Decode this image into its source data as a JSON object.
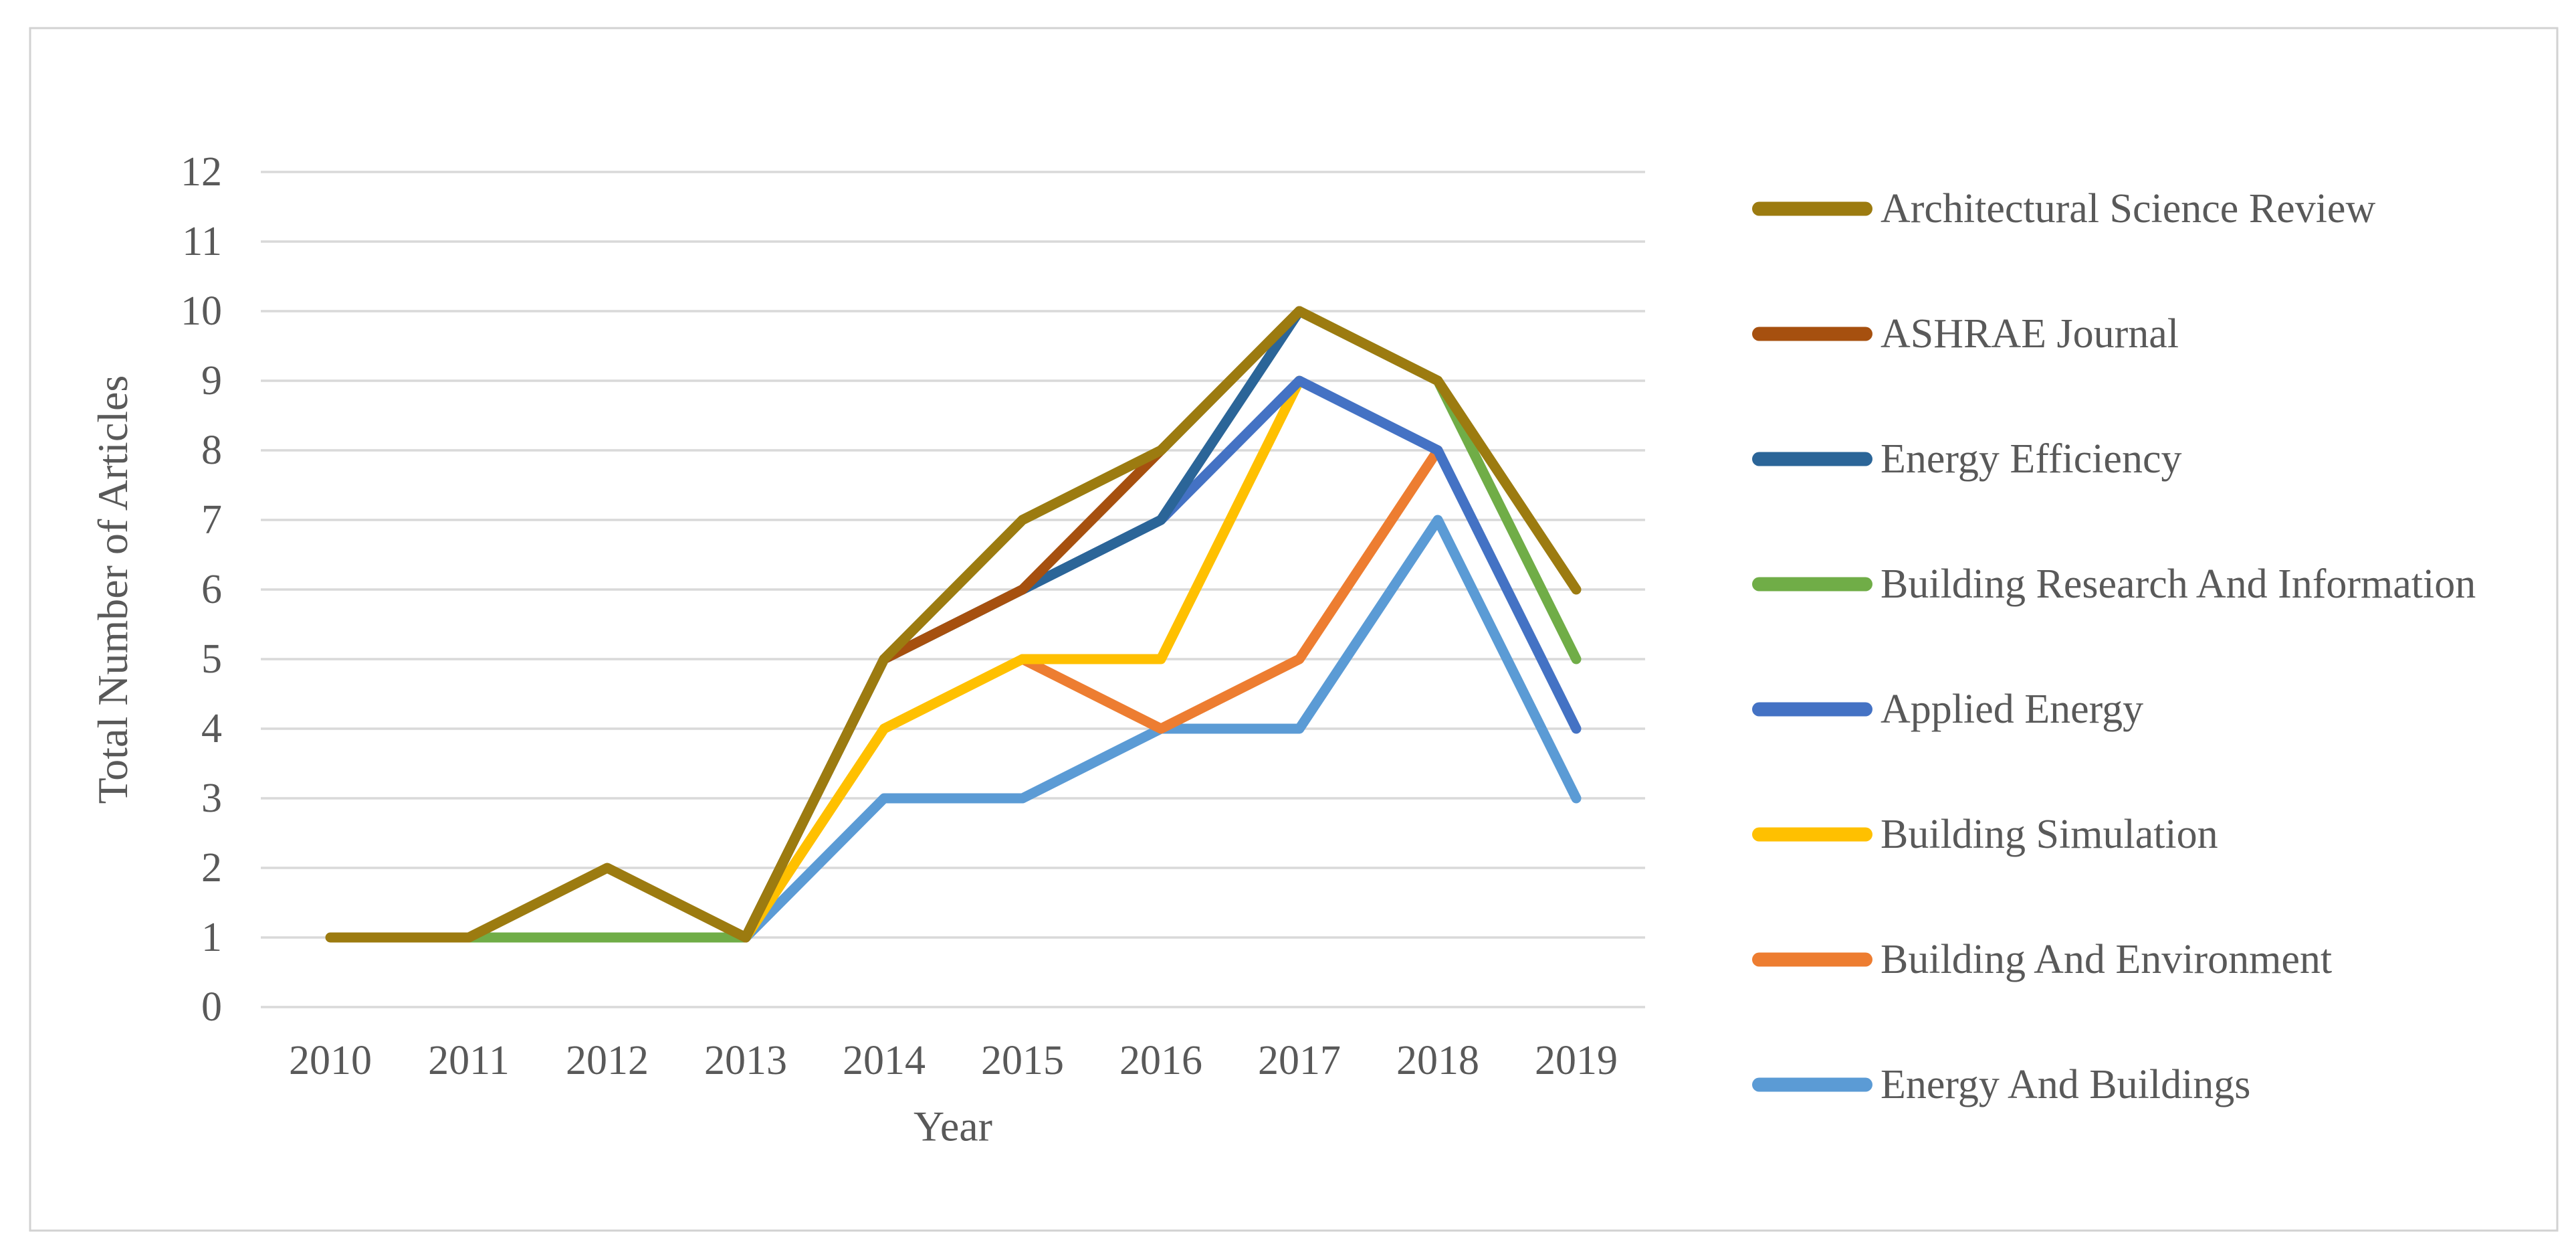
{
  "figure": {
    "background": "#FFFFFF",
    "border_color": "#D2D2D2"
  },
  "theme": {
    "text_color": "#595959",
    "grid_color": "#D9D9D9",
    "line_width": 15,
    "tick_font_size": 62,
    "legend_font_size": 62,
    "axis_title_font_size": 64
  },
  "chart_data": {
    "type": "line",
    "title": "",
    "xlabel": "Year",
    "ylabel": "Total Number of Articles",
    "x_ticks": [
      2010,
      2011,
      2012,
      2013,
      2014,
      2015,
      2016,
      2017,
      2018,
      2019
    ],
    "y_ticks": [
      0,
      1,
      2,
      3,
      4,
      5,
      6,
      7,
      8,
      9,
      10,
      11,
      12
    ],
    "ylim": [
      0,
      12
    ],
    "grid": "horizontal",
    "legend_position": "right",
    "draw_order": [
      3,
      7,
      6,
      5,
      4,
      2,
      1,
      0
    ],
    "series": [
      {
        "name": "Architectural Science Review",
        "color": "#9C7B10",
        "points": [
          [
            2010,
            1
          ],
          [
            2011,
            1
          ],
          [
            2012,
            2
          ],
          [
            2013,
            1
          ],
          [
            2014,
            5
          ],
          [
            2015,
            7
          ],
          [
            2016,
            8
          ],
          [
            2017,
            10
          ],
          [
            2018,
            9
          ],
          [
            2019,
            6
          ]
        ]
      },
      {
        "name": "ASHRAE Journal",
        "color": "#A6500F",
        "points": [
          [
            2013,
            1
          ],
          [
            2014,
            5
          ],
          [
            2015,
            6
          ],
          [
            2016,
            8
          ],
          [
            2017,
            10
          ]
        ]
      },
      {
        "name": "Energy Efficiency",
        "color": "#2B6598",
        "points": [
          [
            2013,
            1
          ],
          [
            2014,
            5
          ],
          [
            2015,
            6
          ],
          [
            2016,
            7
          ],
          [
            2017,
            10
          ]
        ]
      },
      {
        "name": "Building Research And Information",
        "color": "#70AD47",
        "points": [
          [
            2011,
            1
          ],
          [
            2012,
            1
          ],
          [
            2013,
            1
          ],
          [
            2014,
            5
          ],
          [
            2015,
            7
          ],
          [
            2016,
            8
          ],
          [
            2017,
            10
          ],
          [
            2018,
            9
          ],
          [
            2019,
            5
          ]
        ]
      },
      {
        "name": "Applied Energy",
        "color": "#4472C4",
        "points": [
          [
            2015,
            6
          ],
          [
            2016,
            7
          ],
          [
            2017,
            9
          ],
          [
            2018,
            8
          ],
          [
            2019,
            4
          ]
        ]
      },
      {
        "name": "Building Simulation",
        "color": "#FFC000",
        "points": [
          [
            2013,
            1
          ],
          [
            2014,
            4
          ],
          [
            2015,
            5
          ],
          [
            2016,
            5
          ],
          [
            2017,
            9
          ]
        ]
      },
      {
        "name": "Building And Environment",
        "color": "#ED7D31",
        "points": [
          [
            2015,
            5
          ],
          [
            2016,
            4
          ],
          [
            2017,
            5
          ],
          [
            2018,
            8
          ]
        ]
      },
      {
        "name": "Energy And Buildings",
        "color": "#5B9BD5",
        "points": [
          [
            2013,
            1
          ],
          [
            2014,
            3
          ],
          [
            2015,
            3
          ],
          [
            2016,
            4
          ],
          [
            2017,
            4
          ],
          [
            2018,
            7
          ],
          [
            2019,
            3
          ]
        ]
      }
    ]
  }
}
